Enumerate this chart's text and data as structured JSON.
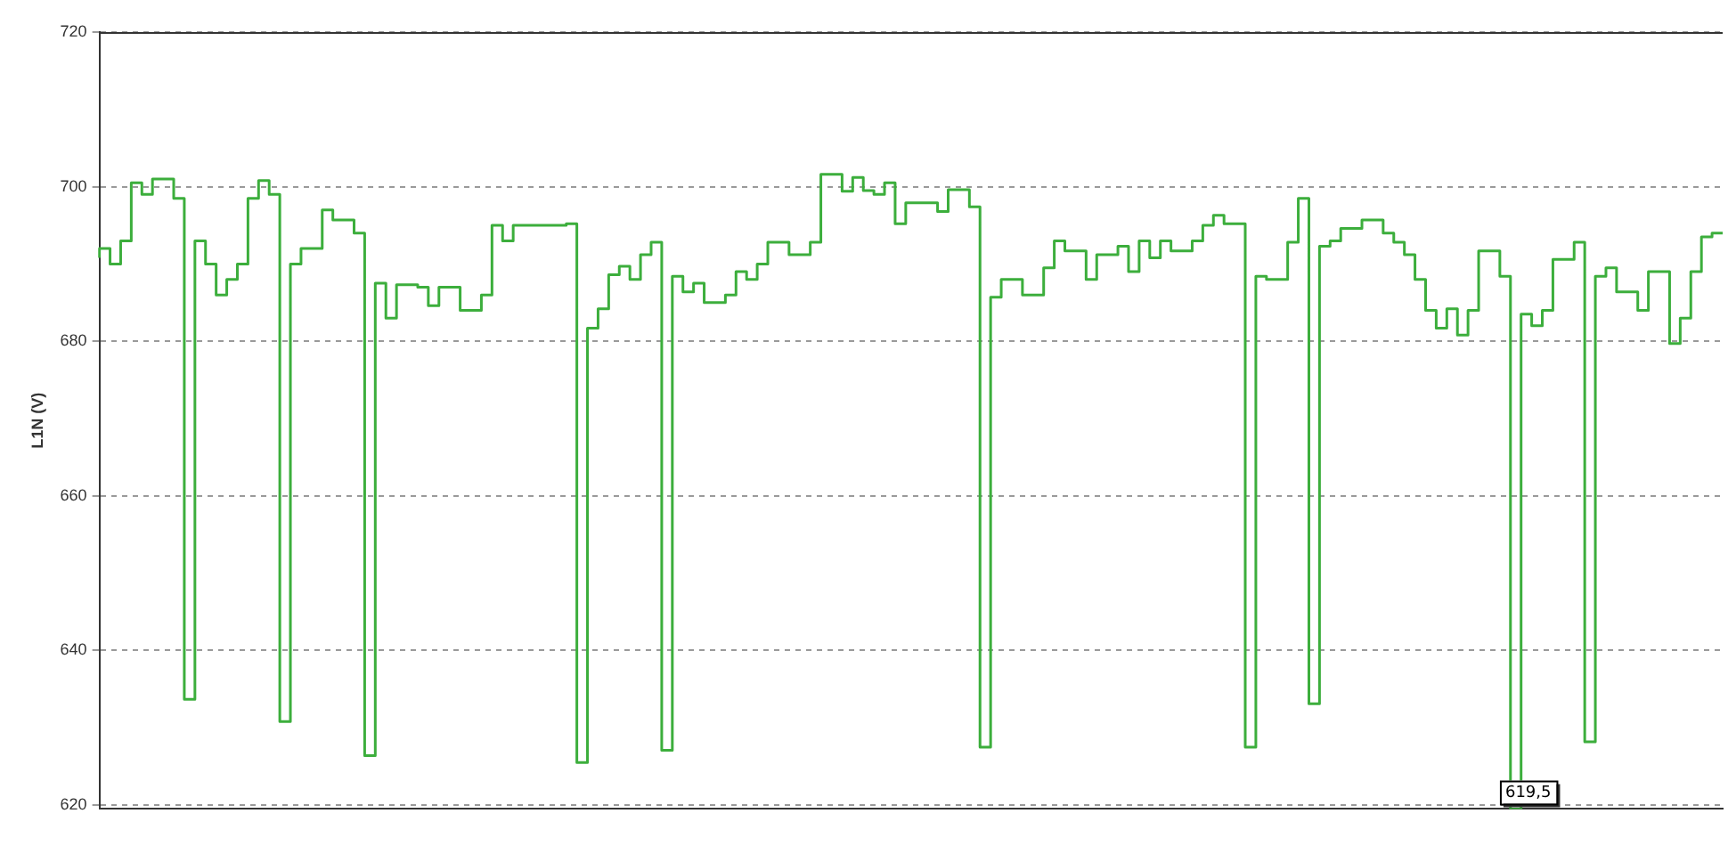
{
  "chart_data": {
    "type": "step",
    "ylabel": "L1N (V)",
    "ylim": [
      619.5,
      720
    ],
    "yticks": [
      620,
      640,
      660,
      680,
      700,
      720
    ],
    "grid": "y",
    "marker": "none",
    "line_style": "solid",
    "categories": [
      null,
      null,
      null,
      null,
      null,
      null,
      null,
      null,
      null,
      null,
      null,
      null,
      null,
      null,
      null,
      null,
      null,
      null,
      null,
      null,
      null,
      null,
      null,
      null,
      null,
      null,
      null,
      null,
      null,
      null,
      null,
      null,
      null,
      null,
      null,
      null,
      null,
      null,
      null,
      null,
      null,
      null,
      null,
      null,
      null,
      null,
      null,
      null,
      null,
      null,
      null,
      null,
      null,
      null,
      null,
      null,
      null,
      null,
      null,
      null,
      null,
      null,
      null,
      null,
      null,
      null,
      null,
      null,
      null,
      null,
      null,
      null,
      null,
      null,
      null,
      null,
      null,
      null,
      null,
      null,
      null,
      null,
      null,
      null,
      null,
      null,
      null,
      null,
      null,
      null,
      null,
      null,
      null,
      null,
      null,
      null,
      null,
      null,
      null,
      null,
      null,
      null,
      null,
      null,
      null,
      null,
      null,
      null,
      null,
      null,
      null,
      null,
      null,
      null,
      null,
      null,
      null,
      null,
      null,
      null,
      null,
      null,
      null,
      null,
      null,
      null,
      null,
      null,
      null,
      null,
      null,
      null,
      null,
      null,
      null,
      null,
      null,
      null,
      null,
      null,
      null,
      null,
      null,
      null,
      null,
      null,
      null,
      null,
      null,
      null,
      null,
      null,
      null,
      null
    ],
    "series": [
      {
        "color": "#3cae3c",
        "values": [
          690.8,
          692,
          690,
          693,
          700.5,
          699,
          701,
          701,
          698.5,
          633.7,
          693,
          690,
          686,
          688,
          690,
          698.5,
          700.8,
          699,
          630.8,
          690,
          692,
          692,
          697,
          695.7,
          695.7,
          694,
          626.4,
          687.5,
          683,
          687.3,
          687.3,
          687,
          684.6,
          687,
          687,
          684,
          684,
          686,
          695,
          693,
          695,
          695,
          695,
          695,
          695,
          695.2,
          625.5,
          681.7,
          684.2,
          688.6,
          689.7,
          688,
          691.2,
          692.8,
          627.1,
          688.4,
          686.4,
          687.5,
          685,
          685,
          686,
          689,
          688,
          690,
          692.8,
          692.8,
          691.2,
          691.2,
          692.8,
          701.6,
          701.6,
          699.4,
          701.2,
          699.5,
          699,
          700.5,
          695.2,
          697.9,
          697.9,
          697.9,
          696.8,
          699.6,
          699.6,
          697.4,
          627.5,
          685.7,
          688,
          688,
          686,
          686,
          689.5,
          693,
          691.7,
          691.7,
          688,
          691.2,
          691.2,
          692.3,
          689,
          693,
          690.8,
          693,
          691.7,
          691.7,
          693,
          695,
          696.3,
          695.2,
          695.2,
          627.5,
          688.4,
          688,
          688,
          692.8,
          698.5,
          633.1,
          692.3,
          693,
          694.6,
          694.6,
          695.7,
          695.7,
          694,
          692.8,
          691.2,
          688,
          684,
          681.7,
          684.2,
          680.8,
          684,
          691.7,
          691.7,
          688.4,
          619.5,
          683.5,
          682,
          684,
          690.6,
          690.6,
          692.8,
          628.2,
          688.4,
          689.5,
          686.4,
          686.4,
          684,
          689,
          689,
          679.7,
          683,
          689,
          693.5,
          694
        ],
        "value_labels": [
          null,
          null,
          null,
          null,
          null,
          null,
          null,
          null,
          null,
          null,
          null,
          null,
          null,
          null,
          null,
          null,
          null,
          null,
          null,
          null,
          null,
          null,
          null,
          null,
          null,
          null,
          null,
          null,
          null,
          null,
          null,
          null,
          null,
          null,
          null,
          null,
          null,
          null,
          null,
          null,
          null,
          null,
          null,
          null,
          null,
          null,
          null,
          null,
          null,
          null,
          null,
          null,
          null,
          null,
          null,
          null,
          null,
          null,
          null,
          null,
          null,
          null,
          null,
          null,
          null,
          null,
          null,
          null,
          null,
          null,
          null,
          null,
          null,
          null,
          null,
          null,
          null,
          null,
          null,
          null,
          null,
          null,
          null,
          null,
          null,
          null,
          null,
          null,
          null,
          null,
          null,
          null,
          null,
          null,
          null,
          null,
          null,
          null,
          null,
          null,
          null,
          null,
          null,
          null,
          null,
          null,
          null,
          null,
          null,
          null,
          null,
          null,
          null,
          null,
          null,
          null,
          null,
          null,
          null,
          null,
          null,
          null,
          null,
          null,
          null,
          null,
          null,
          null,
          null,
          null,
          null,
          null,
          null,
          null,
          "619,5",
          null,
          null,
          null,
          null,
          null,
          null,
          null,
          null,
          null,
          null,
          null,
          null,
          null,
          null,
          null,
          null,
          null,
          null,
          null
        ]
      }
    ]
  }
}
